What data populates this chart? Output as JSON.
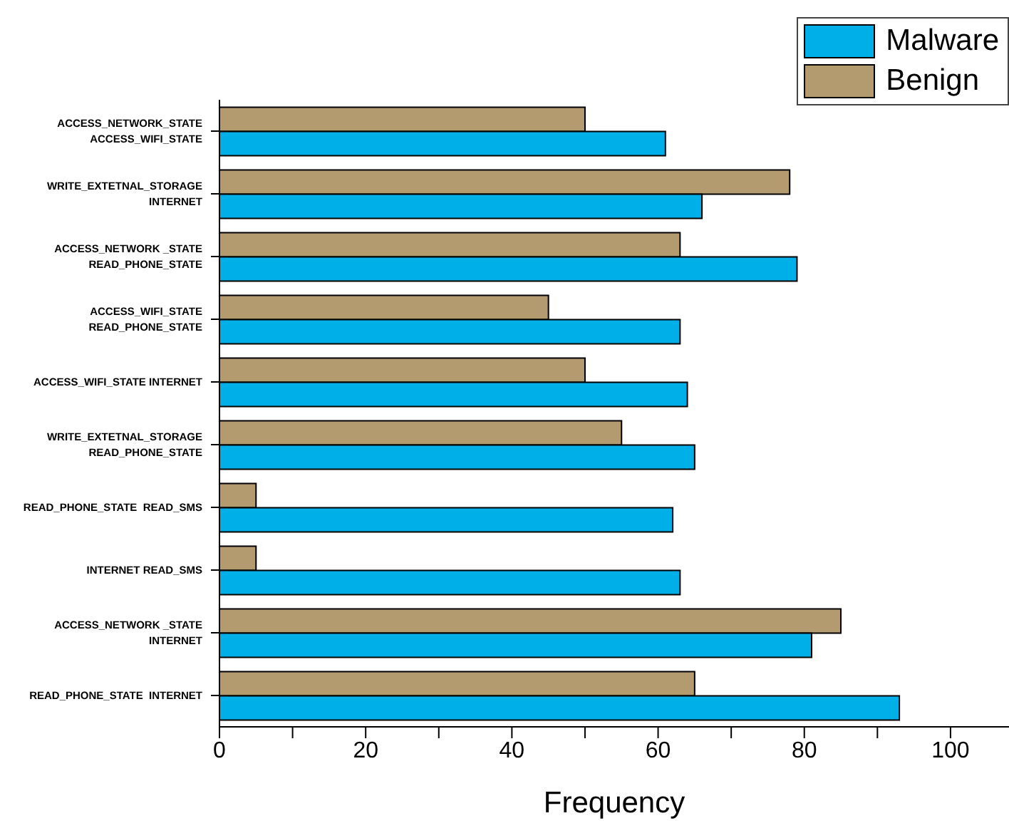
{
  "chart_data": {
    "type": "bar",
    "orientation": "horizontal",
    "xlabel": "Frequency",
    "categories": [
      "ACCESS_NETWORK_STATE\nACCESS_WIFI_STATE",
      "WRITE_EXTETNAL_STORAGE\nINTERNET",
      "ACCESS_NETWORK _STATE\nREAD_PHONE_STATE",
      "ACCESS_WIFI_STATE\nREAD_PHONE_STATE",
      "ACCESS_WIFI_STATE INTERNET",
      "WRITE_EXTETNAL_STORAGE\nREAD_PHONE_STATE",
      "READ_PHONE_STATE  READ_SMS",
      "INTERNET READ_SMS",
      "ACCESS_NETWORK _STATE\nINTERNET",
      "READ_PHONE_STATE  INTERNET"
    ],
    "series": [
      {
        "name": "Malware",
        "color": "#00aee8",
        "values": [
          61,
          66,
          79,
          63,
          64,
          65,
          62,
          63,
          81,
          93
        ]
      },
      {
        "name": "Benign",
        "color": "#b39b6f",
        "values": [
          50,
          78,
          63,
          45,
          50,
          55,
          5,
          5,
          85,
          65
        ]
      }
    ],
    "xlim": [
      0,
      108
    ],
    "xticks": [
      0,
      {
        "value": 10,
        "label": null
      },
      20,
      {
        "value": 30,
        "label": null
      },
      40,
      {
        "value": 50,
        "label": null
      },
      60,
      {
        "value": 70,
        "label": null
      },
      80,
      {
        "value": 90,
        "label": null
      },
      100
    ],
    "legend": "top right"
  }
}
